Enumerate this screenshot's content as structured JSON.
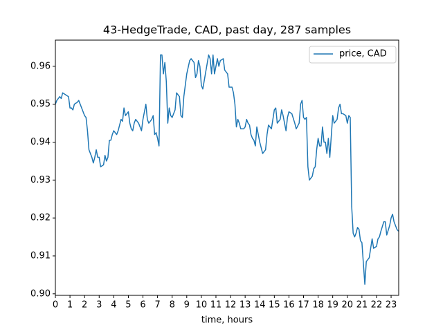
{
  "chart_data": {
    "type": "line",
    "title": "43-HedgeTrade, CAD, past day, 287 samples",
    "xlabel": "time, hours",
    "x": [
      0,
      0.1,
      0.3,
      0.4,
      0.5,
      0.7,
      0.9,
      1.0,
      1.1,
      1.2,
      1.3,
      1.5,
      1.6,
      1.8,
      2.0,
      2.1,
      2.2,
      2.3,
      2.5,
      2.6,
      2.7,
      2.8,
      2.9,
      3.0,
      3.1,
      3.3,
      3.4,
      3.5,
      3.6,
      3.7,
      3.8,
      3.9,
      4.0,
      4.2,
      4.3,
      4.5,
      4.6,
      4.7,
      4.8,
      5.0,
      5.1,
      5.2,
      5.3,
      5.4,
      5.5,
      5.7,
      5.9,
      6.0,
      6.2,
      6.3,
      6.4,
      6.6,
      6.7,
      6.8,
      6.9,
      7.0,
      7.1,
      7.2,
      7.3,
      7.4,
      7.5,
      7.6,
      7.7,
      7.8,
      7.9,
      8.0,
      8.2,
      8.3,
      8.5,
      8.6,
      8.7,
      8.8,
      8.9,
      9.0,
      9.2,
      9.3,
      9.5,
      9.6,
      9.7,
      9.8,
      9.9,
      10.0,
      10.1,
      10.3,
      10.5,
      10.6,
      10.7,
      10.8,
      10.9,
      11.1,
      11.2,
      11.3,
      11.5,
      11.6,
      11.8,
      11.9,
      12.1,
      12.2,
      12.3,
      12.4,
      12.5,
      12.6,
      12.7,
      12.9,
      13.0,
      13.1,
      13.2,
      13.3,
      13.4,
      13.5,
      13.6,
      13.7,
      13.8,
      13.9,
      14.0,
      14.2,
      14.4,
      14.5,
      14.6,
      14.8,
      14.9,
      15.0,
      15.1,
      15.2,
      15.4,
      15.5,
      15.6,
      15.7,
      15.8,
      15.9,
      16.0,
      16.2,
      16.4,
      16.5,
      16.7,
      16.8,
      16.9,
      17.0,
      17.1,
      17.2,
      17.3,
      17.4,
      17.5,
      17.6,
      17.7,
      17.8,
      17.9,
      18.0,
      18.1,
      18.2,
      18.3,
      18.4,
      18.5,
      18.6,
      18.7,
      18.8,
      19.0,
      19.1,
      19.3,
      19.4,
      19.5,
      19.6,
      19.7,
      19.9,
      20.0,
      20.1,
      20.2,
      20.3,
      20.4,
      20.5,
      20.6,
      20.7,
      20.8,
      20.9,
      21.0,
      21.1,
      21.2,
      21.3,
      21.5,
      21.6,
      21.7,
      21.8,
      22.0,
      22.1,
      22.2,
      22.3,
      22.5,
      22.6,
      22.7,
      22.9,
      23.0,
      23.1,
      23.2,
      23.4,
      23.5
    ],
    "series": [
      {
        "name": "price, CAD",
        "color": "#1f77b4",
        "values": [
          0.95,
          0.951,
          0.952,
          0.9515,
          0.953,
          0.9525,
          0.952,
          0.949,
          0.949,
          0.9485,
          0.95,
          0.9505,
          0.951,
          0.949,
          0.947,
          0.9465,
          0.943,
          0.938,
          0.936,
          0.9345,
          0.936,
          0.938,
          0.936,
          0.936,
          0.9335,
          0.934,
          0.9365,
          0.935,
          0.936,
          0.9405,
          0.9405,
          0.942,
          0.943,
          0.942,
          0.943,
          0.946,
          0.9455,
          0.949,
          0.947,
          0.948,
          0.945,
          0.9435,
          0.943,
          0.945,
          0.946,
          0.945,
          0.943,
          0.946,
          0.95,
          0.946,
          0.945,
          0.946,
          0.947,
          0.942,
          0.9425,
          0.941,
          0.939,
          0.963,
          0.963,
          0.958,
          0.961,
          0.956,
          0.945,
          0.949,
          0.947,
          0.9465,
          0.9485,
          0.953,
          0.952,
          0.947,
          0.9465,
          0.952,
          0.955,
          0.958,
          0.9615,
          0.962,
          0.961,
          0.957,
          0.958,
          0.9615,
          0.96,
          0.955,
          0.954,
          0.9585,
          0.963,
          0.962,
          0.958,
          0.963,
          0.958,
          0.962,
          0.96,
          0.9615,
          0.962,
          0.959,
          0.958,
          0.9545,
          0.9545,
          0.953,
          0.95,
          0.944,
          0.946,
          0.945,
          0.9435,
          0.9435,
          0.944,
          0.946,
          0.945,
          0.9445,
          0.942,
          0.941,
          0.9405,
          0.939,
          0.944,
          0.942,
          0.94,
          0.937,
          0.938,
          0.942,
          0.9445,
          0.9435,
          0.946,
          0.9485,
          0.949,
          0.945,
          0.946,
          0.9485,
          0.947,
          0.945,
          0.943,
          0.9465,
          0.948,
          0.9475,
          0.945,
          0.9435,
          0.945,
          0.95,
          0.951,
          0.9465,
          0.946,
          0.9465,
          0.9335,
          0.93,
          0.9305,
          0.931,
          0.933,
          0.9335,
          0.938,
          0.941,
          0.939,
          0.939,
          0.944,
          0.94,
          0.94,
          0.937,
          0.941,
          0.936,
          0.947,
          0.945,
          0.946,
          0.949,
          0.95,
          0.9475,
          0.9475,
          0.947,
          0.945,
          0.947,
          0.9465,
          0.923,
          0.916,
          0.915,
          0.916,
          0.9175,
          0.917,
          0.914,
          0.9135,
          0.908,
          0.9025,
          0.9085,
          0.9095,
          0.912,
          0.9145,
          0.912,
          0.9125,
          0.9145,
          0.915,
          0.9165,
          0.919,
          0.919,
          0.9155,
          0.918,
          0.92,
          0.921,
          0.919,
          0.917,
          0.9165
        ]
      }
    ],
    "xlim": [
      0,
      23.52
    ],
    "ylim": [
      0.8996,
      0.9669
    ],
    "xticks": [
      0,
      1,
      2,
      3,
      4,
      5,
      6,
      7,
      8,
      9,
      10,
      11,
      12,
      13,
      14,
      15,
      16,
      17,
      18,
      19,
      20,
      21,
      22,
      23
    ],
    "yticks": [
      {
        "value": 0.9,
        "label": "0.90"
      },
      0.91,
      0.92,
      0.93,
      0.94,
      0.95,
      0.96
    ],
    "legend": "upper right"
  }
}
